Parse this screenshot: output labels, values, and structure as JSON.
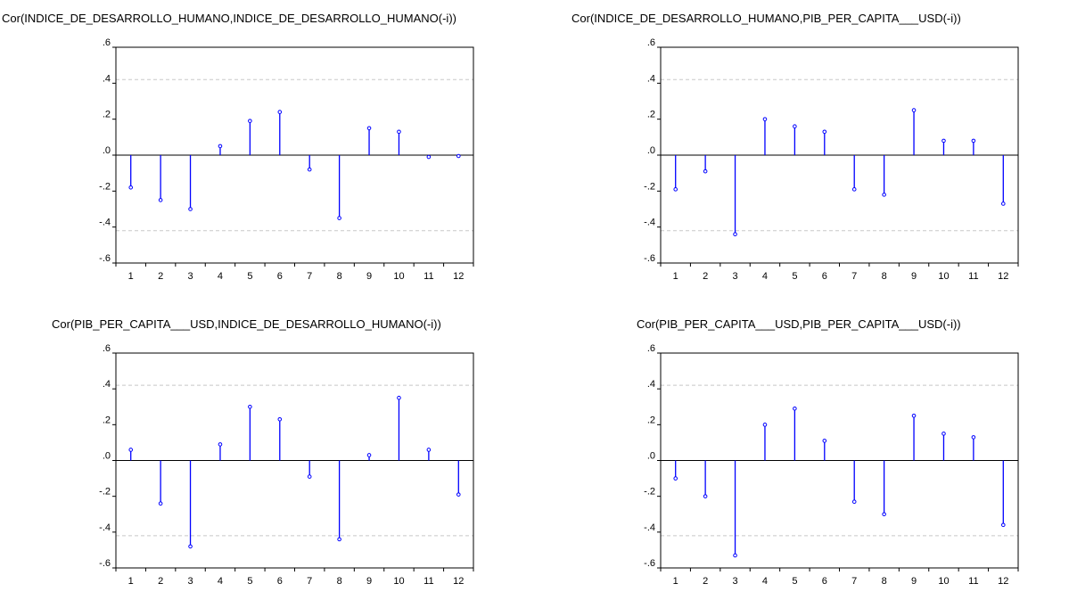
{
  "chart_data": [
    {
      "type": "bar",
      "title": "Cor(INDICE_DE_DESARROLLO_HUMANO,INDICE_DE_DESARROLLO_HUMANO(-i))",
      "categories": [
        "1",
        "2",
        "3",
        "4",
        "5",
        "6",
        "7",
        "8",
        "9",
        "10",
        "11",
        "12"
      ],
      "values": [
        -0.18,
        -0.25,
        -0.3,
        0.05,
        0.19,
        0.24,
        -0.08,
        -0.35,
        0.15,
        0.13,
        -0.01,
        -0.005
      ],
      "yticks": [
        ".6",
        ".4",
        ".2",
        ".0",
        "-.2",
        "-.4",
        "-.6"
      ],
      "ylim": [
        -0.6,
        0.6
      ],
      "confidence_bands": [
        0.42,
        -0.42
      ],
      "color": "#0000ff"
    },
    {
      "type": "bar",
      "title": "Cor(INDICE_DE_DESARROLLO_HUMANO,PIB_PER_CAPITA___USD(-i))",
      "categories": [
        "1",
        "2",
        "3",
        "4",
        "5",
        "6",
        "7",
        "8",
        "9",
        "10",
        "11",
        "12"
      ],
      "values": [
        -0.19,
        -0.09,
        -0.44,
        0.2,
        0.16,
        0.13,
        -0.19,
        -0.22,
        0.25,
        0.08,
        0.08,
        -0.27
      ],
      "yticks": [
        ".6",
        ".4",
        ".2",
        ".0",
        "-.2",
        "-.4",
        "-.6"
      ],
      "ylim": [
        -0.6,
        0.6
      ],
      "confidence_bands": [
        0.42,
        -0.42
      ],
      "color": "#0000ff"
    },
    {
      "type": "bar",
      "title": "Cor(PIB_PER_CAPITA___USD,INDICE_DE_DESARROLLO_HUMANO(-i))",
      "categories": [
        "1",
        "2",
        "3",
        "4",
        "5",
        "6",
        "7",
        "8",
        "9",
        "10",
        "11",
        "12"
      ],
      "values": [
        0.06,
        -0.24,
        -0.48,
        0.09,
        0.3,
        0.23,
        -0.09,
        -0.44,
        0.03,
        0.35,
        0.06,
        -0.19
      ],
      "yticks": [
        ".6",
        ".4",
        ".2",
        ".0",
        "-.2",
        "-.4",
        "-.6"
      ],
      "ylim": [
        -0.6,
        0.6
      ],
      "confidence_bands": [
        0.42,
        -0.42
      ],
      "color": "#0000ff"
    },
    {
      "type": "bar",
      "title": "Cor(PIB_PER_CAPITA___USD,PIB_PER_CAPITA___USD(-i))",
      "categories": [
        "1",
        "2",
        "3",
        "4",
        "5",
        "6",
        "7",
        "8",
        "9",
        "10",
        "11",
        "12"
      ],
      "values": [
        -0.1,
        -0.2,
        -0.53,
        0.2,
        0.29,
        0.11,
        -0.23,
        -0.3,
        0.25,
        0.15,
        0.13,
        -0.36
      ],
      "yticks": [
        ".6",
        ".4",
        ".2",
        ".0",
        "-.2",
        "-.4",
        "-.6"
      ],
      "ylim": [
        -0.6,
        0.6
      ],
      "confidence_bands": [
        0.42,
        -0.42
      ],
      "color": "#0000ff"
    }
  ]
}
